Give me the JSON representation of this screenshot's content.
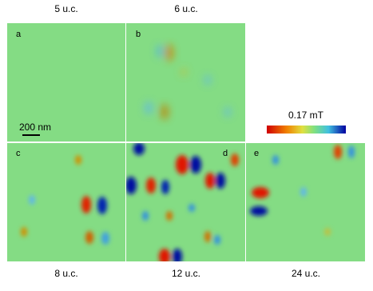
{
  "panels": [
    {
      "letter": "a",
      "title": "5 u.c."
    },
    {
      "letter": "b",
      "title": "6 u.c."
    },
    {
      "letter": "c",
      "title": "8 u.c."
    },
    {
      "letter": "d",
      "title": "12 u.c."
    },
    {
      "letter": "e",
      "title": "24 u.c."
    }
  ],
  "scale_bar": "200 nm",
  "colorbar": {
    "label": "0.17 mT"
  }
}
